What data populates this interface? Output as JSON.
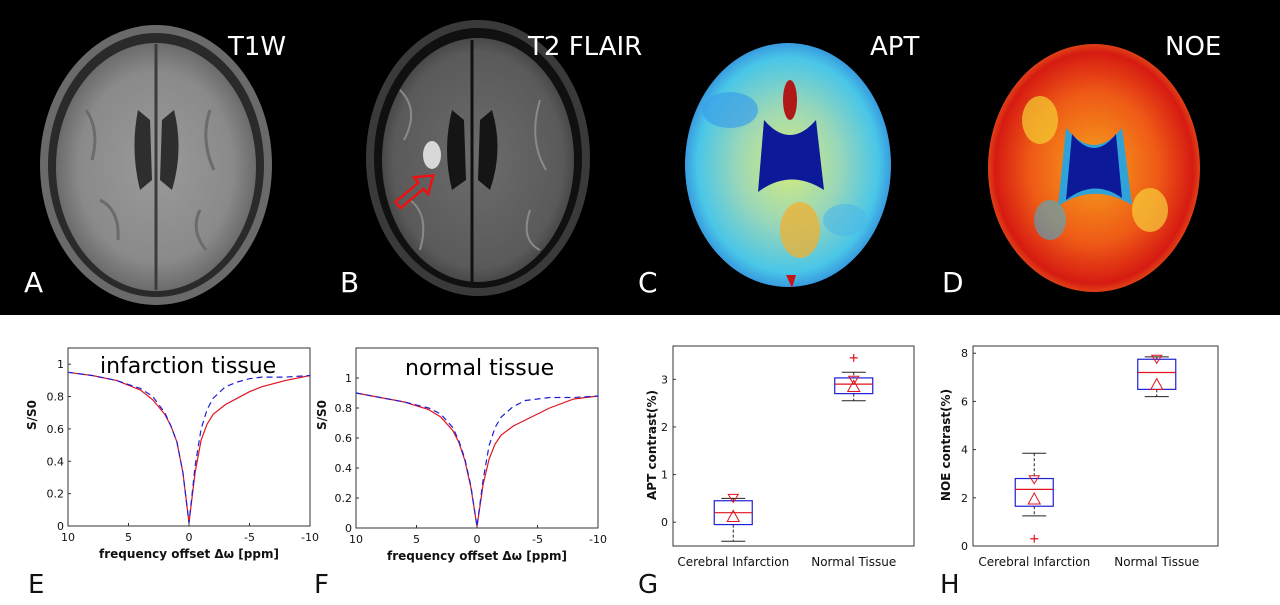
{
  "panels": {
    "A": {
      "letter": "A",
      "title": "T1W"
    },
    "B": {
      "letter": "B",
      "title": "T2 FLAIR"
    },
    "C": {
      "letter": "C",
      "title": "APT"
    },
    "D": {
      "letter": "D",
      "title": "NOE"
    },
    "E": {
      "letter": "E"
    },
    "F": {
      "letter": "F"
    },
    "G": {
      "letter": "G"
    },
    "H": {
      "letter": "H"
    }
  },
  "chart_data": [
    {
      "id": "E",
      "type": "line",
      "title": "infarction tissue",
      "xlabel": "frequency offset Δω [ppm]",
      "ylabel": "S/S0",
      "xlim": [
        10,
        -10
      ],
      "ylim": [
        0,
        1.1
      ],
      "xticks": [
        "10",
        "5",
        "0",
        "-5",
        "-10"
      ],
      "yticks": [
        "0",
        "0.2",
        "0.4",
        "0.6",
        "0.8",
        "1"
      ],
      "series": [
        {
          "color": "#e0141e",
          "style": "solid",
          "x": [
            10,
            8,
            6,
            4,
            3,
            2,
            1.5,
            1,
            0.5,
            0,
            -0.5,
            -1,
            -1.5,
            -2,
            -3,
            -4,
            -5,
            -6,
            -8,
            -10
          ],
          "y": [
            0.95,
            0.93,
            0.9,
            0.84,
            0.78,
            0.69,
            0.62,
            0.52,
            0.33,
            0.02,
            0.33,
            0.53,
            0.63,
            0.69,
            0.75,
            0.79,
            0.83,
            0.86,
            0.9,
            0.93
          ]
        },
        {
          "color": "#1f1fd6",
          "style": "dashed",
          "x": [
            10,
            8,
            6,
            4,
            3,
            2,
            1.5,
            1,
            0.5,
            0,
            -0.5,
            -1,
            -1.5,
            -2,
            -3,
            -4,
            -5,
            -6,
            -8,
            -10
          ],
          "y": [
            0.95,
            0.93,
            0.9,
            0.85,
            0.8,
            0.7,
            0.62,
            0.52,
            0.33,
            0.02,
            0.37,
            0.6,
            0.72,
            0.79,
            0.86,
            0.89,
            0.91,
            0.92,
            0.92,
            0.93
          ]
        }
      ]
    },
    {
      "id": "F",
      "type": "line",
      "title": "normal tissue",
      "xlabel": "frequency offset Δω [ppm]",
      "ylabel": "S/S0",
      "xlim": [
        10,
        -10
      ],
      "ylim": [
        0,
        1.2
      ],
      "xticks": [
        "10",
        "5",
        "0",
        "-5",
        "-10"
      ],
      "yticks": [
        "0",
        "0.2",
        "0.4",
        "0.6",
        "0.8",
        "1"
      ],
      "series": [
        {
          "color": "#e0141e",
          "style": "solid",
          "x": [
            10,
            8,
            6,
            4,
            3,
            2,
            1.5,
            1,
            0.5,
            0,
            -0.5,
            -1,
            -1.5,
            -2,
            -3,
            -4,
            -5,
            -6,
            -8,
            -10
          ],
          "y": [
            0.9,
            0.87,
            0.84,
            0.79,
            0.74,
            0.65,
            0.57,
            0.45,
            0.27,
            0.01,
            0.29,
            0.46,
            0.56,
            0.62,
            0.68,
            0.72,
            0.76,
            0.8,
            0.86,
            0.88
          ]
        },
        {
          "color": "#1f1fd6",
          "style": "dashed",
          "x": [
            10,
            8,
            6,
            4,
            3,
            2,
            1.5,
            1,
            0.5,
            0,
            -0.5,
            -1,
            -1.5,
            -2,
            -3,
            -4,
            -5,
            -6,
            -8,
            -10
          ],
          "y": [
            0.9,
            0.87,
            0.84,
            0.8,
            0.76,
            0.67,
            0.58,
            0.46,
            0.28,
            0.01,
            0.32,
            0.55,
            0.67,
            0.74,
            0.81,
            0.85,
            0.86,
            0.87,
            0.87,
            0.88
          ]
        }
      ]
    },
    {
      "id": "G",
      "type": "box",
      "ylabel": "APT contrast(%)",
      "ylim": [
        -0.5,
        3.7
      ],
      "yticks": [
        "0",
        "1",
        "2",
        "3"
      ],
      "categories": [
        "Cerebral Infarction",
        "Normal Tissue"
      ],
      "boxes": [
        {
          "min": -0.4,
          "q1": -0.05,
          "median": 0.2,
          "q3": 0.45,
          "max": 0.5,
          "mean": 0.12,
          "notch_top": 0.5,
          "outliers": []
        },
        {
          "min": 2.55,
          "q1": 2.7,
          "median": 2.9,
          "q3": 3.03,
          "max": 3.15,
          "mean": 2.85,
          "notch_top": 2.98,
          "outliers": [
            3.45
          ]
        }
      ]
    },
    {
      "id": "H",
      "type": "box",
      "ylabel": "NOE contrast(%)",
      "ylim": [
        0,
        8.3
      ],
      "yticks": [
        "0",
        "2",
        "4",
        "6",
        "8"
      ],
      "categories": [
        "Cerebral Infarction",
        "Normal Tissue"
      ],
      "boxes": [
        {
          "min": 1.25,
          "q1": 1.65,
          "median": 2.35,
          "q3": 2.8,
          "max": 3.85,
          "mean": 1.95,
          "notch_top": 2.75,
          "outliers": [
            0.3
          ]
        },
        {
          "min": 6.2,
          "q1": 6.5,
          "median": 7.2,
          "q3": 7.75,
          "max": 7.85,
          "mean": 6.7,
          "notch_top": 7.75,
          "outliers": []
        }
      ]
    }
  ]
}
